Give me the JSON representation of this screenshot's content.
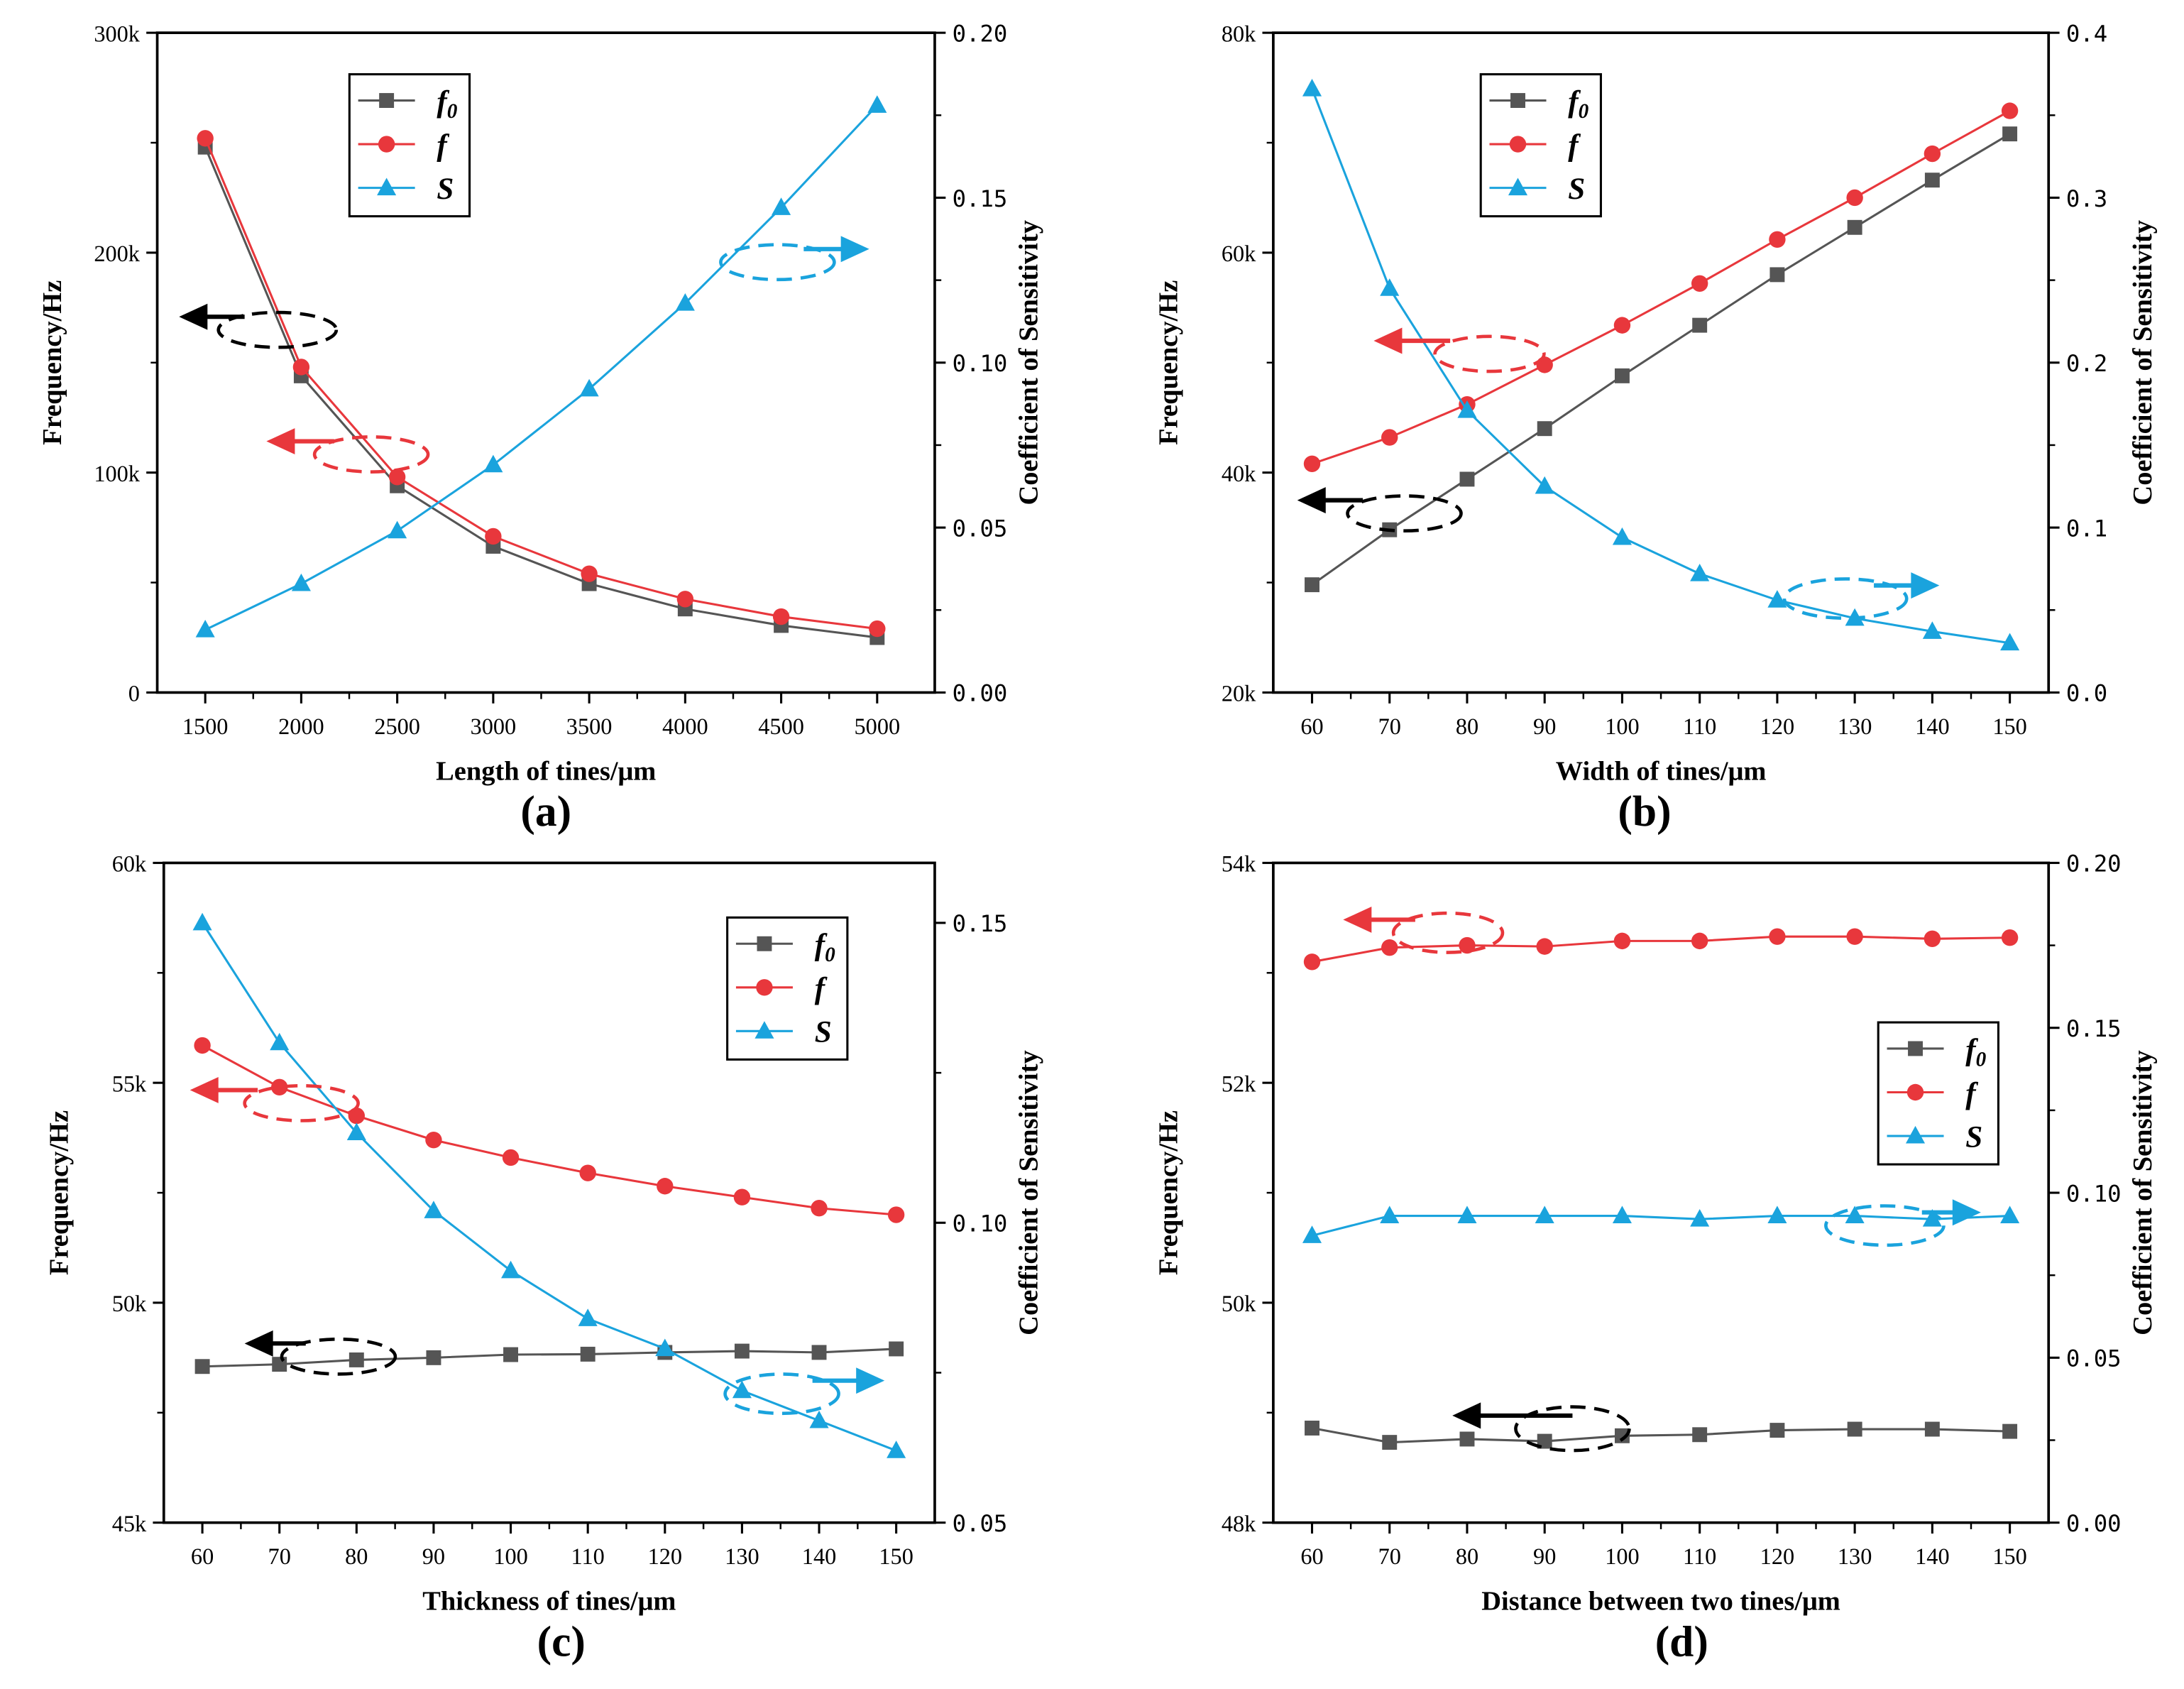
{
  "chart_data": [
    {
      "type": "line",
      "panel_label": "(a)",
      "xlabel": "Length of tines/μm",
      "ylabel": "Frequency/Hz",
      "y2label": "Coefficient of Sensitivity",
      "xlim": [
        1250,
        5300
      ],
      "ylim": [
        0,
        300000
      ],
      "y2lim": [
        0,
        0.2
      ],
      "xticks": [
        1500,
        2000,
        2500,
        3000,
        3500,
        4000,
        4500,
        5000
      ],
      "xtick_labels": [
        "1500",
        "2000",
        "2500",
        "3000",
        "3500",
        "4000",
        "4500",
        "5000"
      ],
      "yticks": [
        0,
        100000,
        200000,
        300000
      ],
      "ytick_labels": [
        "0",
        "100k",
        "200k",
        "300k"
      ],
      "y2ticks": [
        0,
        0.05,
        0.1,
        0.15,
        0.2
      ],
      "y2tick_labels": [
        "0.00",
        "0.05",
        "0.10",
        "0.15",
        "0.20"
      ],
      "x": [
        1500,
        2000,
        2500,
        3000,
        3500,
        4000,
        4500,
        5000
      ],
      "series": [
        {
          "name": "f0",
          "label_base": "f",
          "label_sub": "0",
          "axis": "left",
          "color": "#555555",
          "marker": "square",
          "values": [
            248000,
            144000,
            94000,
            66500,
            49500,
            38000,
            30500,
            25000
          ]
        },
        {
          "name": "f",
          "label_base": "f",
          "label_sub": "",
          "axis": "left",
          "color": "#e8373c",
          "marker": "circle",
          "values": [
            252000,
            148000,
            98000,
            71000,
            54000,
            42500,
            34500,
            29000
          ]
        },
        {
          "name": "S",
          "label_base": "S",
          "label_sub": "",
          "axis": "right",
          "color": "#1aa3dd",
          "marker": "triangle",
          "values": [
            0.019,
            0.033,
            0.049,
            0.069,
            0.092,
            0.118,
            0.147,
            0.178
          ]
        }
      ],
      "legend": {
        "position": "top-left"
      }
    },
    {
      "type": "line",
      "panel_label": "(b)",
      "xlabel": "Width of tines/μm",
      "ylabel": "Frequency/Hz",
      "y2label": "Coefficient of Sensitivity",
      "xlim": [
        55,
        155
      ],
      "ylim": [
        20000,
        80000
      ],
      "y2lim": [
        0,
        0.4
      ],
      "xticks": [
        60,
        70,
        80,
        90,
        100,
        110,
        120,
        130,
        140,
        150
      ],
      "xtick_labels": [
        "60",
        "70",
        "80",
        "90",
        "100",
        "110",
        "120",
        "130",
        "140",
        "150"
      ],
      "yticks": [
        20000,
        40000,
        60000,
        80000
      ],
      "ytick_labels": [
        "20k",
        "40k",
        "60k",
        "80k"
      ],
      "y2ticks": [
        0,
        0.1,
        0.2,
        0.3,
        0.4
      ],
      "y2tick_labels": [
        "0.0",
        "0.1",
        "0.2",
        "0.3",
        "0.4"
      ],
      "x": [
        60,
        70,
        80,
        90,
        100,
        110,
        120,
        130,
        140,
        150
      ],
      "series": [
        {
          "name": "f0",
          "label_base": "f",
          "label_sub": "0",
          "axis": "left",
          "color": "#555555",
          "marker": "square",
          "values": [
            29800,
            34800,
            39400,
            44000,
            48800,
            53400,
            58000,
            62300,
            66600,
            70800
          ]
        },
        {
          "name": "f",
          "label_base": "f",
          "label_sub": "",
          "axis": "left",
          "color": "#e8373c",
          "marker": "circle",
          "values": [
            40800,
            43200,
            46200,
            49800,
            53400,
            57200,
            61200,
            65000,
            69000,
            72900
          ]
        },
        {
          "name": "S",
          "label_base": "S",
          "label_sub": "",
          "axis": "right",
          "color": "#1aa3dd",
          "marker": "triangle",
          "values": [
            0.366,
            0.245,
            0.171,
            0.125,
            0.094,
            0.072,
            0.056,
            0.045,
            0.037,
            0.03
          ]
        }
      ],
      "legend": {
        "position": "top-left"
      }
    },
    {
      "type": "line",
      "panel_label": "(c)",
      "xlabel": "Thickness of tines/μm",
      "ylabel": "Frequency/Hz",
      "y2label": "Coefficient of Sensitivity",
      "xlim": [
        55,
        155
      ],
      "ylim": [
        45000,
        60000
      ],
      "y2lim": [
        0.05,
        0.16
      ],
      "xticks": [
        60,
        70,
        80,
        90,
        100,
        110,
        120,
        130,
        140,
        150
      ],
      "xtick_labels": [
        "60",
        "70",
        "80",
        "90",
        "100",
        "110",
        "120",
        "130",
        "140",
        "150"
      ],
      "yticks": [
        45000,
        50000,
        55000,
        60000
      ],
      "ytick_labels": [
        "45k",
        "50k",
        "55k",
        "60k"
      ],
      "y2ticks": [
        0.05,
        0.1,
        0.15
      ],
      "y2tick_labels": [
        "0.05",
        "0.10",
        "0.15"
      ],
      "x": [
        60,
        70,
        80,
        90,
        100,
        110,
        120,
        130,
        140,
        150
      ],
      "series": [
        {
          "name": "f0",
          "label_base": "f",
          "label_sub": "0",
          "axis": "left",
          "color": "#555555",
          "marker": "square",
          "values": [
            48550,
            48600,
            48700,
            48750,
            48820,
            48830,
            48870,
            48900,
            48870,
            48950
          ]
        },
        {
          "name": "f",
          "label_base": "f",
          "label_sub": "",
          "axis": "left",
          "color": "#e8373c",
          "marker": "circle",
          "values": [
            55850,
            54900,
            54250,
            53700,
            53300,
            52950,
            52650,
            52400,
            52150,
            52000
          ]
        },
        {
          "name": "S",
          "label_base": "S",
          "label_sub": "",
          "axis": "right",
          "color": "#1aa3dd",
          "marker": "triangle",
          "values": [
            0.15,
            0.13,
            0.115,
            0.102,
            0.092,
            0.084,
            0.079,
            0.072,
            0.067,
            0.062
          ]
        }
      ],
      "legend": {
        "position": "top-right"
      }
    },
    {
      "type": "line",
      "panel_label": "(d)",
      "xlabel": "Distance between two tines/μm",
      "ylabel": "Frequency/Hz",
      "y2label": "Coefficient of Sensitivity",
      "xlim": [
        55,
        155
      ],
      "ylim": [
        48000,
        54000
      ],
      "y2lim": [
        0,
        0.2
      ],
      "xticks": [
        60,
        70,
        80,
        90,
        100,
        110,
        120,
        130,
        140,
        150
      ],
      "xtick_labels": [
        "60",
        "70",
        "80",
        "90",
        "100",
        "110",
        "120",
        "130",
        "140",
        "150"
      ],
      "yticks": [
        48000,
        50000,
        52000,
        54000
      ],
      "ytick_labels": [
        "48k",
        "50k",
        "52k",
        "54k"
      ],
      "y2ticks": [
        0,
        0.05,
        0.1,
        0.15,
        0.2
      ],
      "y2tick_labels": [
        "0.00",
        "0.05",
        "0.10",
        "0.15",
        "0.20"
      ],
      "x": [
        60,
        70,
        80,
        90,
        100,
        110,
        120,
        130,
        140,
        150
      ],
      "series": [
        {
          "name": "f0",
          "label_base": "f",
          "label_sub": "0",
          "axis": "left",
          "color": "#555555",
          "marker": "square",
          "values": [
            48860,
            48730,
            48760,
            48740,
            48790,
            48800,
            48840,
            48850,
            48850,
            48830
          ]
        },
        {
          "name": "f",
          "label_base": "f",
          "label_sub": "",
          "axis": "left",
          "color": "#e8373c",
          "marker": "circle",
          "values": [
            53100,
            53230,
            53250,
            53240,
            53290,
            53290,
            53330,
            53330,
            53310,
            53320
          ]
        },
        {
          "name": "S",
          "label_base": "S",
          "label_sub": "",
          "axis": "right",
          "color": "#1aa3dd",
          "marker": "triangle",
          "values": [
            0.087,
            0.093,
            0.093,
            0.093,
            0.093,
            0.092,
            0.093,
            0.093,
            0.092,
            0.093
          ]
        }
      ],
      "legend": {
        "position": "right"
      }
    }
  ]
}
